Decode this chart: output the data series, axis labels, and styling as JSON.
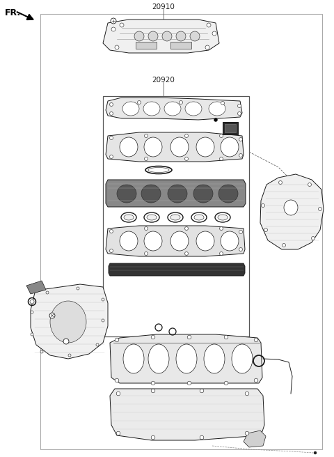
{
  "bg_color": "#ffffff",
  "text_color": "#1a1a1a",
  "line_color": "#1a1a1a",
  "label_20910": "20910",
  "label_20920": "20920",
  "fr_label": "FR.",
  "fig_width": 4.8,
  "fig_height": 6.56,
  "dpi": 100,
  "part_face_color": "#f0f0f0",
  "part_edge_color": "#1a1a1a",
  "inner_box_edge": "#555555"
}
